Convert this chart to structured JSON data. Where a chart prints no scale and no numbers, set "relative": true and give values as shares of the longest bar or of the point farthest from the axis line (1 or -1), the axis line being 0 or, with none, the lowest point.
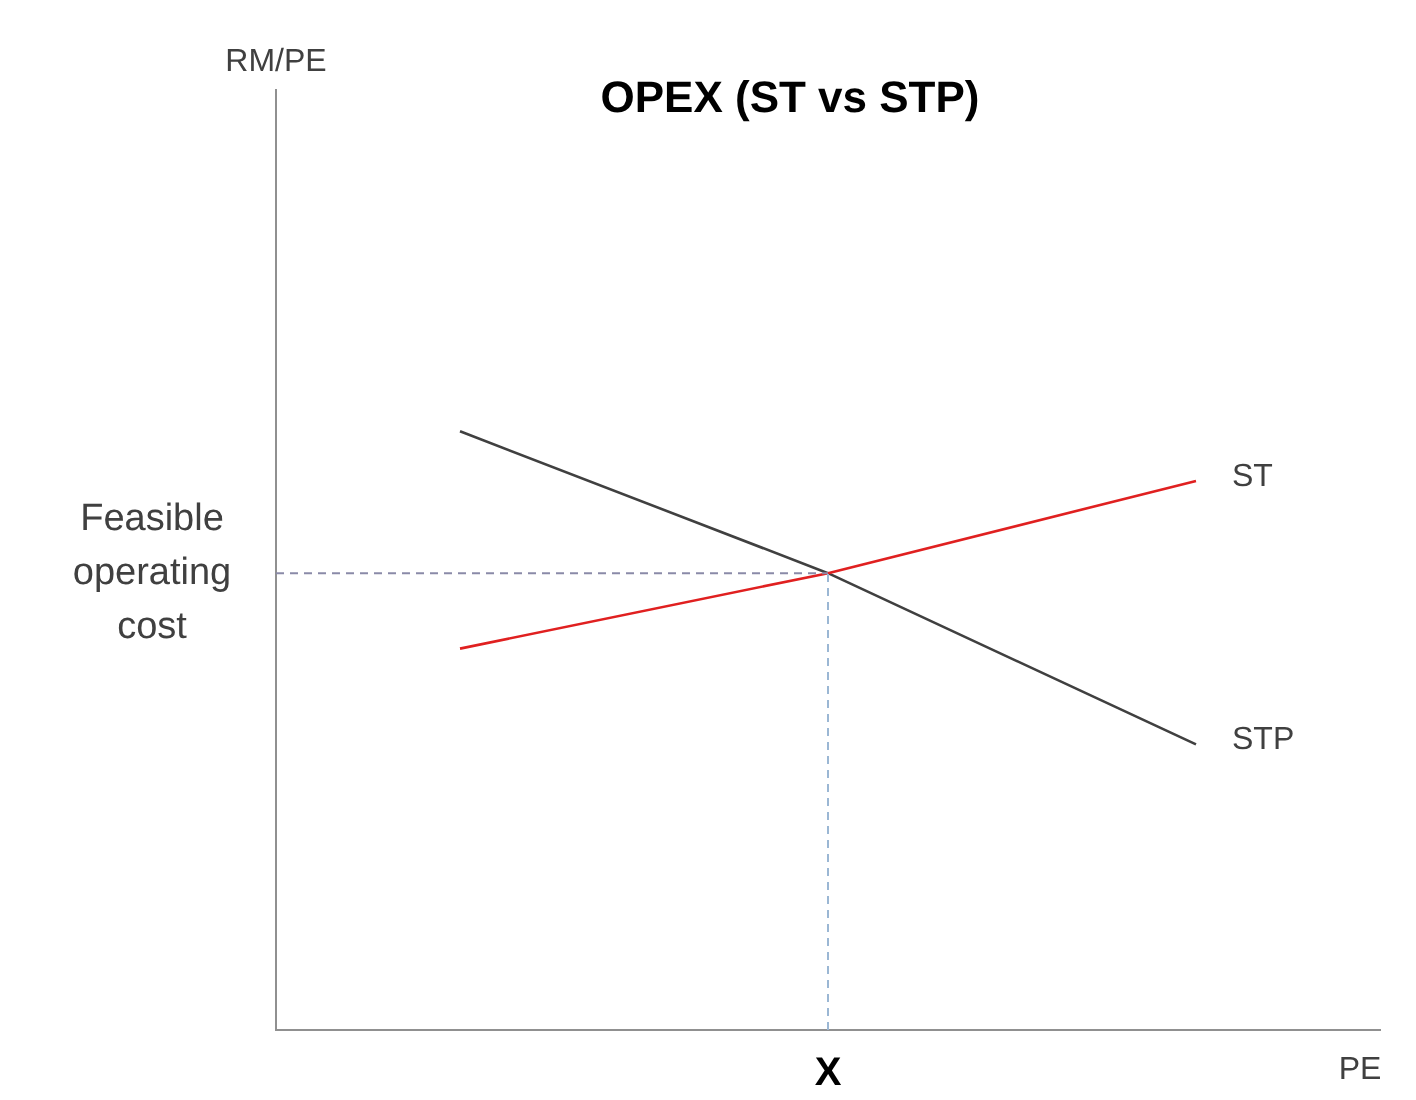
{
  "chart_data": {
    "type": "line",
    "title": "OPEX (ST vs STP)",
    "xlabel": "PE",
    "relative": true,
    "categories": [
      null,
      null,
      null
    ],
    "annotations": [
      "X",
      "RM/PE"
    ],
    "series": [
      {
        "name": "ST",
        "color": "#e02020",
        "values": [
          0.637,
          0.763,
          0.917
        ]
      },
      {
        "name": "STP",
        "color": "#404040",
        "values": [
          1,
          0.763,
          0.477
        ]
      }
    ],
    "ref_lines": [
      {
        "axis": "y",
        "value": 0.763,
        "label": "Feasible operating cost",
        "color": "#8a8aa8",
        "line_style": "dashed"
      }
    ],
    "tick_labels": false,
    "grid": false,
    "legend": false,
    "marker": "none",
    "line_style": "solid"
  }
}
